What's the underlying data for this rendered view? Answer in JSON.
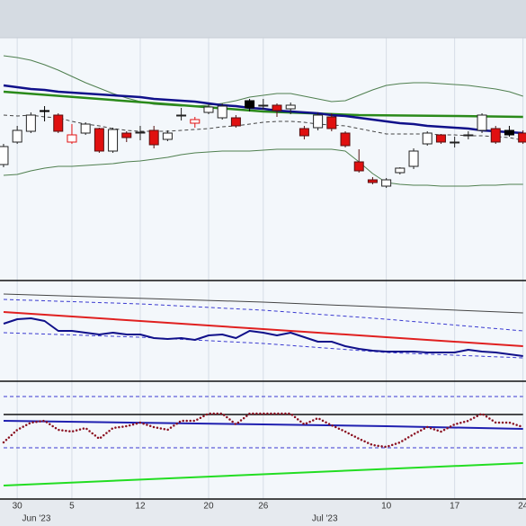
{
  "chart_data": [
    {
      "type": "candlestick",
      "xlim": [
        -0.26,
        38.22
      ],
      "ylim": [
        0,
        270
      ],
      "xticks": [
        {
          "value": 1,
          "label": "30"
        },
        {
          "value": 5,
          "label": "5"
        },
        {
          "value": 10,
          "label": "12"
        },
        {
          "value": 15,
          "label": "20"
        },
        {
          "value": 19,
          "label": "26"
        },
        {
          "value": 28,
          "label": "10"
        },
        {
          "value": 33,
          "label": "17"
        },
        {
          "value": 38,
          "label": "24"
        }
      ],
      "month_ticks": [
        {
          "value": 2.4,
          "label": "Jun '23"
        },
        {
          "value": 23.5,
          "label": "Jul '23"
        }
      ],
      "grid": true,
      "open": [
        129,
        154,
        166,
        188,
        184,
        162,
        164,
        169,
        144,
        164,
        165,
        167,
        157,
        184,
        179,
        187,
        181,
        181,
        200,
        195,
        195,
        191,
        169,
        170,
        182,
        164,
        132,
        112,
        105,
        120,
        127,
        152,
        162,
        154,
        162,
        167,
        169,
        167,
        164
      ],
      "high": [
        152,
        172,
        187,
        194,
        186,
        174,
        176,
        170,
        170,
        166,
        172,
        172,
        167,
        192,
        182,
        196,
        197,
        184,
        202,
        202,
        197,
        198,
        172,
        187,
        186,
        166,
        146,
        115,
        114,
        126,
        147,
        166,
        163,
        160,
        166,
        186,
        172,
        172,
        167
      ],
      "low": [
        126,
        152,
        164,
        177,
        164,
        152,
        162,
        142,
        142,
        154,
        156,
        147,
        155,
        178,
        170,
        185,
        179,
        170,
        188,
        190,
        182,
        185,
        157,
        167,
        166,
        148,
        120,
        107,
        103,
        118,
        124,
        150,
        152,
        148,
        157,
        164,
        152,
        160,
        152
      ],
      "close": [
        149,
        167,
        184,
        189,
        166,
        154,
        174,
        144,
        168,
        159,
        165,
        151,
        164,
        184,
        175,
        193,
        194,
        172,
        192,
        195,
        189,
        195,
        161,
        184,
        169,
        150,
        122,
        109,
        112,
        125,
        144,
        164,
        154,
        154,
        162,
        184,
        154,
        162,
        154
      ],
      "styles": [
        "up",
        "up",
        "up",
        "black",
        "down",
        "hollow",
        "up",
        "down",
        "up",
        "down",
        "up",
        "down",
        "up",
        "up",
        "hollow",
        "up",
        "up",
        "down",
        "black",
        "up",
        "down",
        "up",
        "down",
        "up",
        "down",
        "down",
        "down",
        "down",
        "up",
        "up",
        "up",
        "up",
        "down",
        "up",
        "up",
        "up",
        "down",
        "black",
        "down"
      ],
      "series": [
        {
          "color": "#4f7f4f",
          "width": 1,
          "values": [
            250,
            248,
            245,
            240,
            234,
            227,
            220,
            214,
            208,
            203,
            199,
            196,
            195,
            194,
            194,
            195,
            197,
            200,
            204,
            206,
            208,
            208,
            205,
            202,
            199,
            200,
            206,
            212,
            217,
            219,
            220,
            220,
            219,
            218,
            217,
            215,
            213,
            210,
            205
          ]
        },
        {
          "color": "#4f7f4f",
          "width": 1,
          "values": [
            117,
            118,
            122,
            125,
            127,
            127,
            128,
            129,
            130,
            132,
            133,
            135,
            137,
            140,
            142,
            143,
            144,
            144,
            144,
            145,
            146,
            146,
            146,
            146,
            146,
            144,
            132,
            119,
            109,
            107,
            106,
            106,
            105,
            105,
            105,
            106,
            106,
            107,
            107
          ]
        },
        {
          "color": "#444444",
          "width": 1,
          "dash": true,
          "values": [
            184,
            183,
            184,
            182,
            181,
            177,
            174,
            172,
            169,
            167,
            166,
            166,
            166,
            167,
            168,
            169,
            171,
            172,
            174,
            176,
            177,
            177,
            176,
            174,
            173,
            172,
            169,
            166,
            163,
            163,
            163,
            163,
            162,
            162,
            161,
            161,
            160,
            159,
            156
          ]
        },
        {
          "color": "#2a8a1a",
          "width": 2.5,
          "x": [
            0,
            13,
            19,
            26,
            33,
            38
          ],
          "values": [
            210,
            195,
            188,
            184,
            183,
            182
          ]
        },
        {
          "color": "#10108a",
          "width": 2.5,
          "values": [
            217,
            215,
            213,
            212,
            210,
            209,
            208,
            207,
            206,
            205,
            204,
            202,
            201,
            200,
            199,
            197,
            195,
            194,
            192,
            191,
            189,
            188,
            187,
            186,
            184,
            183,
            181,
            179,
            177,
            175,
            174,
            172,
            171,
            170,
            169,
            167,
            166,
            165,
            164
          ]
        }
      ]
    },
    {
      "type": "line",
      "xlim": [
        -0.26,
        38.22
      ],
      "ylim": [
        0,
        112
      ],
      "series": [
        {
          "color": "#444444",
          "width": 1,
          "x": [
            0,
            19,
            38
          ],
          "values": [
            97,
            88,
            76
          ]
        },
        {
          "color": "#3a3ad0",
          "width": 1,
          "dash": true,
          "x": [
            0,
            10,
            19,
            28,
            38
          ],
          "values": [
            91,
            86,
            79,
            69,
            56
          ]
        },
        {
          "color": "#3a3ad0",
          "width": 1,
          "dash": true,
          "x": [
            0,
            10,
            19,
            28,
            38
          ],
          "values": [
            54,
            49,
            42,
            32,
            26
          ]
        },
        {
          "color": "#e02020",
          "width": 2,
          "x": [
            0,
            10,
            19,
            28,
            38
          ],
          "values": [
            77,
            67,
            58,
            49,
            39
          ]
        },
        {
          "color": "#10108a",
          "width": 2,
          "values": [
            64,
            69,
            70,
            67,
            56,
            56,
            54,
            52,
            54,
            52,
            52,
            48,
            47,
            48,
            46,
            51,
            52,
            48,
            56,
            54,
            51,
            54,
            49,
            44,
            44,
            39,
            36,
            34,
            33,
            33,
            33,
            32,
            32,
            32,
            35,
            33,
            32,
            30,
            28
          ]
        }
      ]
    },
    {
      "type": "line",
      "xlim": [
        -0.26,
        38.22
      ],
      "ylim": [
        0,
        131
      ],
      "series": [
        {
          "color": "#111111",
          "width": 1.5,
          "x": [
            0,
            38
          ],
          "values": [
            94,
            94
          ]
        },
        {
          "color": "#3a3ad0",
          "width": 1,
          "dash": true,
          "x": [
            0,
            38
          ],
          "values": [
            114,
            114
          ]
        },
        {
          "color": "#3a3ad0",
          "width": 1,
          "dash": true,
          "x": [
            0,
            38
          ],
          "values": [
            57,
            57
          ]
        },
        {
          "color": "#2020b0",
          "width": 2,
          "x": [
            0,
            19,
            28,
            38
          ],
          "values": [
            87,
            83,
            81,
            78
          ]
        },
        {
          "color": "#22dd22",
          "width": 2,
          "x": [
            0,
            38
          ],
          "values": [
            15,
            40
          ]
        },
        {
          "color": "#8a1020",
          "width": 2.5,
          "dots": true,
          "values": [
            63,
            77,
            85,
            87,
            77,
            75,
            79,
            67,
            79,
            81,
            85,
            80,
            77,
            87,
            87,
            95,
            95,
            83,
            95,
            95,
            95,
            95,
            83,
            90,
            82,
            75,
            67,
            60,
            58,
            63,
            72,
            80,
            75,
            83,
            87,
            95,
            85,
            85,
            80
          ]
        }
      ]
    }
  ]
}
